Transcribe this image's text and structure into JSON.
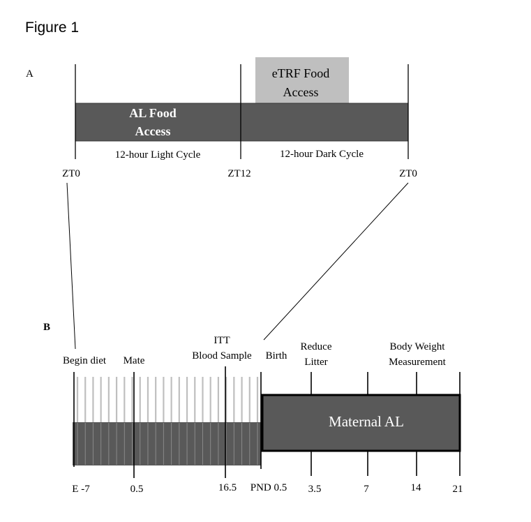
{
  "figure_title": "Figure 1",
  "panel_a": {
    "label": "A",
    "al_food_line1": "AL Food",
    "al_food_line2": "Access",
    "etrf_line1": "eTRF Food",
    "etrf_line2": "Access",
    "light_cycle": "12-hour Light Cycle",
    "dark_cycle": "12-hour Dark Cycle",
    "zt_left": "ZT0",
    "zt_mid": "ZT12",
    "zt_right": "ZT0"
  },
  "panel_b": {
    "label": "B",
    "begin_diet": "Begin diet",
    "mate": "Mate",
    "itt_line1": "ITT",
    "itt_line2": "Blood Sample",
    "birth": "Birth",
    "reduce_line1": "Reduce",
    "reduce_line2": "Litter",
    "bw_line1": "Body Weight",
    "bw_line2": "Measurement",
    "maternal": "Maternal AL",
    "ticks": {
      "e_minus_7": "E -7",
      "half": "0.5",
      "sixteen_half": "16.5",
      "pnd_half": "PND 0.5",
      "three_half": "3.5",
      "seven": "7",
      "fourteen": "14",
      "twentyone": "21"
    },
    "gestation_day_stripes": 24
  },
  "colors": {
    "dark_bar": "#595959",
    "etrf_box": "#bfbfbf",
    "stripe_gray": "#bfbfbf"
  }
}
